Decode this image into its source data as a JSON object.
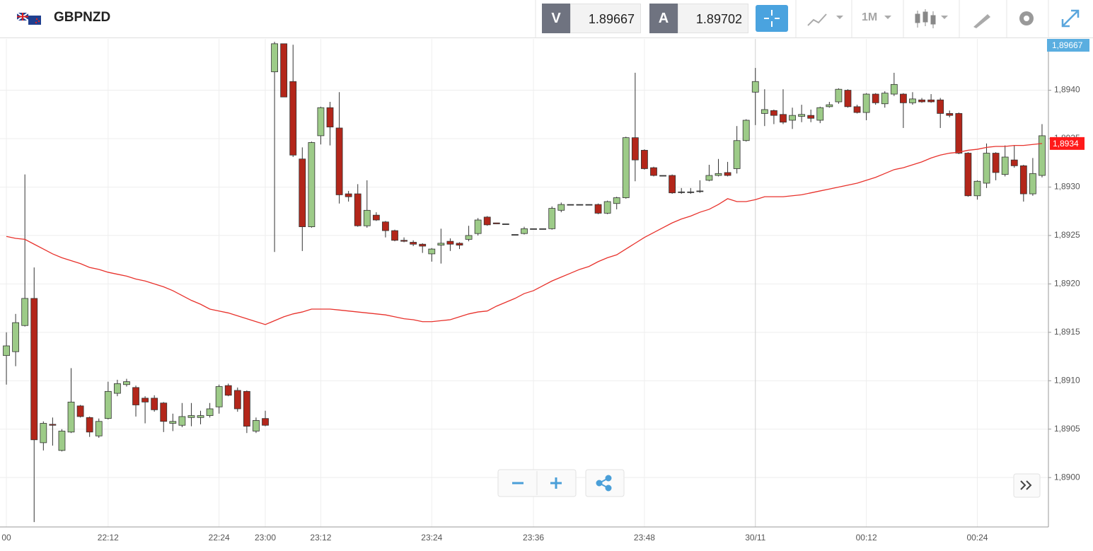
{
  "header": {
    "symbol": "GBPNZD",
    "bid_label": "V",
    "bid": 1.89667,
    "ask_label": "A",
    "ask": 1.89702,
    "timeframe": "1M"
  },
  "chart_data": {
    "type": "candlestick",
    "categories": [
      "00",
      null,
      null,
      null,
      null,
      null,
      null,
      null,
      null,
      null,
      null,
      "22:12",
      null,
      null,
      null,
      null,
      null,
      null,
      null,
      null,
      null,
      null,
      null,
      "22:24",
      null,
      null,
      null,
      null,
      "23:00",
      null,
      null,
      null,
      null,
      null,
      "23:12",
      null,
      null,
      null,
      null,
      null,
      null,
      null,
      null,
      null,
      null,
      null,
      "23:24",
      null,
      null,
      null,
      null,
      null,
      null,
      null,
      null,
      null,
      null,
      "23:36",
      null,
      null,
      null,
      null,
      null,
      null,
      null,
      null,
      null,
      null,
      null,
      "23:48",
      null,
      null,
      null,
      null,
      null,
      null,
      null,
      null,
      null,
      null,
      null,
      "30/11",
      null,
      null,
      null,
      null,
      null,
      null,
      null,
      null,
      null,
      null,
      null,
      "00:12",
      null,
      null,
      null,
      null,
      null,
      null,
      null,
      null,
      null,
      null,
      null,
      "00:24",
      null,
      null,
      null,
      null,
      null,
      null,
      null
    ],
    "open": [
      1.89126,
      1.8913,
      1.89157,
      1.89185,
      1.89036,
      1.89055,
      1.89028,
      1.89047,
      1.89074,
      1.89062,
      1.89043,
      1.89061,
      1.89087,
      1.89096,
      1.89093,
      1.89082,
      1.89082,
      1.89077,
      1.89056,
      1.89054,
      1.89062,
      1.89062,
      1.89064,
      1.89073,
      1.89095,
      1.8909,
      1.89089,
      1.89048,
      1.89061,
      1.89419,
      1.89448,
      1.89409,
      1.89329,
      1.89259,
      1.89353,
      1.89382,
      1.89361,
      1.89293,
      1.89293,
      1.8926,
      1.89271,
      1.89264,
      1.89255,
      1.89245,
      1.89243,
      1.89241,
      1.89231,
      1.8924,
      1.89244,
      1.89242,
      1.89246,
      1.89252,
      1.89269,
      1.89263,
      1.89262,
      1.89251,
      1.89252,
      1.89257,
      1.89257,
      1.89257,
      1.89276,
      1.89282,
      1.89282,
      1.89282,
      1.89282,
      1.89273,
      1.89283,
      1.89289,
      1.89351,
      1.89338,
      1.8932,
      1.89312,
      1.89312,
      1.89295,
      1.89295,
      1.89296,
      1.89307,
      1.89312,
      1.89315,
      1.89319,
      1.89348,
      1.89398,
      1.89376,
      1.89379,
      1.89375,
      1.89369,
      1.89373,
      1.89374,
      1.89369,
      1.89383,
      1.89388,
      1.894,
      1.89383,
      1.89377,
      1.89396,
      1.89386,
      1.89396,
      1.89396,
      1.89387,
      1.8939,
      1.8939,
      1.8939,
      1.89376,
      1.89376,
      1.89335,
      1.89291,
      1.89304,
      1.89335,
      1.89313,
      1.89328,
      1.89322,
      1.89293,
      1.89312
    ],
    "high": [
      1.8915,
      1.89169,
      1.89313,
      1.89217,
      1.89058,
      1.89062,
      1.8905,
      1.89113,
      1.89075,
      1.89063,
      1.89061,
      1.89099,
      1.89101,
      1.89102,
      1.89095,
      1.89084,
      1.89085,
      1.89078,
      1.89066,
      1.89077,
      1.89077,
      1.89069,
      1.89077,
      1.89096,
      1.89097,
      1.89093,
      1.8909,
      1.89062,
      1.89069,
      1.8945,
      1.89448,
      1.89447,
      1.89341,
      1.89347,
      1.89383,
      1.89388,
      1.89398,
      1.89296,
      1.89303,
      1.89307,
      1.89274,
      1.89265,
      1.89256,
      1.89248,
      1.89245,
      1.89242,
      1.89237,
      1.89257,
      1.89247,
      1.89243,
      1.8926,
      1.89268,
      1.8927,
      1.89263,
      1.89262,
      1.89251,
      1.89259,
      1.89257,
      1.89257,
      1.8928,
      1.89284,
      1.89282,
      1.89282,
      1.89282,
      1.89283,
      1.89286,
      1.8929,
      1.89352,
      1.89418,
      1.89339,
      1.89321,
      1.89312,
      1.89313,
      1.89299,
      1.89299,
      1.89307,
      1.89323,
      1.89329,
      1.89326,
      1.89363,
      1.8937,
      1.89423,
      1.89401,
      1.8938,
      1.89401,
      1.89382,
      1.89385,
      1.8938,
      1.89383,
      1.89388,
      1.89402,
      1.89401,
      1.89385,
      1.89397,
      1.89397,
      1.89399,
      1.89418,
      1.89397,
      1.89398,
      1.89392,
      1.89396,
      1.89392,
      1.89379,
      1.89377,
      1.89336,
      1.89307,
      1.89345,
      1.89336,
      1.89343,
      1.89343,
      1.89323,
      1.8933,
      1.89365
    ],
    "low": [
      1.89096,
      1.89115,
      1.89156,
      1.88954,
      1.89028,
      1.89033,
      1.89027,
      1.89046,
      1.89062,
      1.89042,
      1.89041,
      1.8906,
      1.89084,
      1.89094,
      1.89063,
      1.89056,
      1.89068,
      1.89047,
      1.89048,
      1.89052,
      1.89053,
      1.89055,
      1.89062,
      1.89066,
      1.89084,
      1.89068,
      1.89046,
      1.89046,
      1.89053,
      1.89233,
      1.89393,
      1.89331,
      1.89234,
      1.89258,
      1.89344,
      1.89343,
      1.89283,
      1.89285,
      1.89259,
      1.89258,
      1.89265,
      1.89248,
      1.89244,
      1.89243,
      1.89239,
      1.89232,
      1.89223,
      1.89221,
      1.89234,
      1.89236,
      1.89244,
      1.8925,
      1.8926,
      1.89262,
      1.89262,
      1.89251,
      1.89251,
      1.89257,
      1.89257,
      1.89256,
      1.89274,
      1.89282,
      1.89282,
      1.89282,
      1.89272,
      1.89272,
      1.89277,
      1.89288,
      1.89306,
      1.89318,
      1.89311,
      1.89312,
      1.89293,
      1.89293,
      1.89293,
      1.89294,
      1.89306,
      1.89311,
      1.89311,
      1.89314,
      1.89347,
      1.89364,
      1.89363,
      1.89365,
      1.89365,
      1.8936,
      1.89367,
      1.89367,
      1.89366,
      1.89382,
      1.89386,
      1.89382,
      1.89376,
      1.89369,
      1.89385,
      1.89382,
      1.89394,
      1.89361,
      1.89385,
      1.89387,
      1.89387,
      1.89361,
      1.89372,
      1.89334,
      1.8929,
      1.89287,
      1.89299,
      1.89307,
      1.89311,
      1.8932,
      1.89285,
      1.89291,
      1.8931
    ],
    "close": [
      1.89136,
      1.8916,
      1.89185,
      1.89039,
      1.89056,
      1.89054,
      1.89048,
      1.89078,
      1.89063,
      1.89047,
      1.89058,
      1.89089,
      1.89097,
      1.89099,
      1.89075,
      1.89078,
      1.8907,
      1.89058,
      1.89058,
      1.89063,
      1.89064,
      1.89064,
      1.89071,
      1.89094,
      1.89085,
      1.89071,
      1.89053,
      1.89059,
      1.89054,
      1.89448,
      1.89393,
      1.89333,
      1.89259,
      1.89346,
      1.89382,
      1.89362,
      1.89292,
      1.8929,
      1.8926,
      1.89276,
      1.89266,
      1.89255,
      1.89245,
      1.89244,
      1.89241,
      1.89239,
      1.89236,
      1.89242,
      1.89241,
      1.8924,
      1.8925,
      1.89266,
      1.89261,
      1.89262,
      1.89262,
      1.89251,
      1.89257,
      1.89257,
      1.89257,
      1.89278,
      1.89282,
      1.89282,
      1.89282,
      1.89282,
      1.89273,
      1.89285,
      1.89289,
      1.89351,
      1.89328,
      1.89319,
      1.89312,
      1.89312,
      1.89294,
      1.89295,
      1.89295,
      1.89296,
      1.89312,
      1.89314,
      1.89312,
      1.89348,
      1.89369,
      1.89409,
      1.8938,
      1.89374,
      1.89367,
      1.89374,
      1.89375,
      1.89371,
      1.89382,
      1.89385,
      1.89401,
      1.89383,
      1.89377,
      1.89396,
      1.89387,
      1.89397,
      1.89406,
      1.89387,
      1.89391,
      1.89388,
      1.89388,
      1.89376,
      1.89374,
      1.89335,
      1.89291,
      1.89306,
      1.89335,
      1.89315,
      1.89331,
      1.89322,
      1.89293,
      1.89314,
      1.89353
    ],
    "up_color": "#9dcb88",
    "down_color": "#b3261a",
    "overlay": {
      "color": "#e8322c",
      "values": [
        1.89249,
        1.89247,
        1.89246,
        1.89241,
        1.89236,
        1.89231,
        1.89227,
        1.89224,
        1.89221,
        1.89217,
        1.89215,
        1.89212,
        1.8921,
        1.89208,
        1.89205,
        1.89203,
        1.892,
        1.89197,
        1.89193,
        1.89188,
        1.89183,
        1.89179,
        1.89174,
        1.89172,
        1.8917,
        1.89167,
        1.89164,
        1.89161,
        1.89158,
        1.89162,
        1.89166,
        1.89169,
        1.89171,
        1.89174,
        1.89174,
        1.89174,
        1.89173,
        1.89172,
        1.89171,
        1.8917,
        1.89169,
        1.89168,
        1.89166,
        1.89164,
        1.89163,
        1.89161,
        1.89161,
        1.89162,
        1.89163,
        1.89166,
        1.89169,
        1.89171,
        1.89172,
        1.89177,
        1.89181,
        1.89185,
        1.8919,
        1.89193,
        1.89198,
        1.89203,
        1.89207,
        1.89211,
        1.89215,
        1.89218,
        1.89223,
        1.89227,
        1.8923,
        1.89236,
        1.89242,
        1.89248,
        1.89253,
        1.89258,
        1.89263,
        1.89267,
        1.8927,
        1.89274,
        1.89277,
        1.89282,
        1.89288,
        1.89285,
        1.89285,
        1.89287,
        1.8929,
        1.8929,
        1.8929,
        1.89291,
        1.89292,
        1.89294,
        1.89296,
        1.89298,
        1.893,
        1.89302,
        1.89304,
        1.89307,
        1.8931,
        1.89314,
        1.89318,
        1.8932,
        1.89323,
        1.89326,
        1.8933,
        1.89333,
        1.89335,
        1.89336,
        1.89338,
        1.89339,
        1.89341,
        1.89342,
        1.89342,
        1.89343,
        1.89343,
        1.89344,
        1.89345
      ]
    },
    "ma_label": "1,8934",
    "price_label": "1,89667",
    "ylim": [
      1.88949,
      1.89453
    ],
    "yticks": [
      {
        "value": 1.89,
        "label": "1,8900"
      },
      {
        "value": 1.8905,
        "label": "1,8905"
      },
      {
        "value": 1.891,
        "label": "1,8910"
      },
      {
        "value": 1.8915,
        "label": "1,8915"
      },
      {
        "value": 1.892,
        "label": "1,8920"
      },
      {
        "value": 1.8925,
        "label": "1,8925"
      },
      {
        "value": 1.893,
        "label": "1,8930"
      },
      {
        "value": 1.8935,
        "label": "1,8935"
      },
      {
        "value": 1.894,
        "label": "1,8940"
      }
    ],
    "grid": true
  }
}
